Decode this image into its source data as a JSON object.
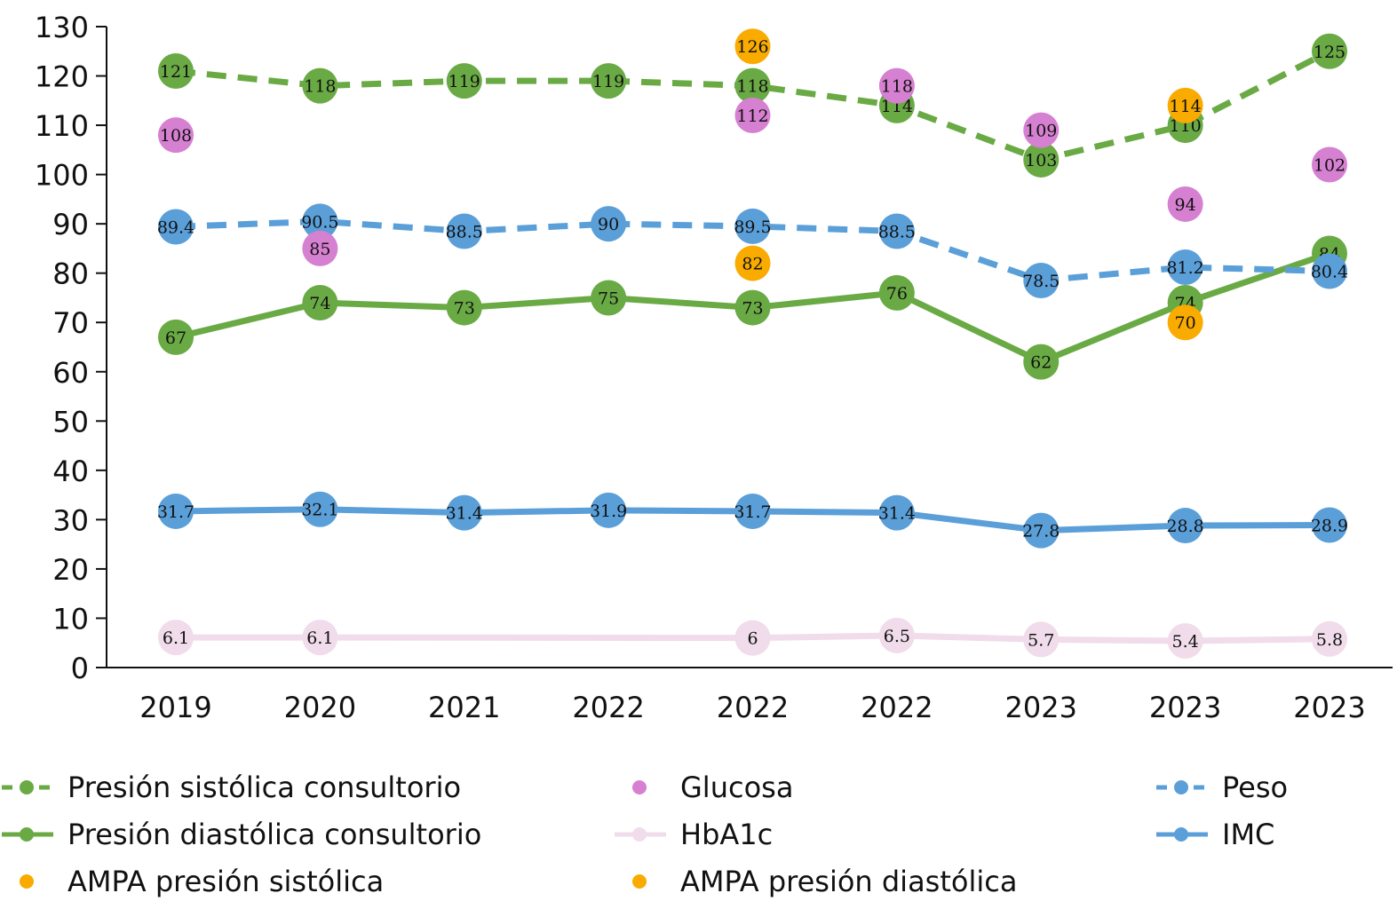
{
  "chart_data": {
    "type": "line",
    "title": "",
    "xlabel": "",
    "ylabel": "",
    "ylim": [
      0,
      130
    ],
    "yticks": [
      0,
      10,
      20,
      30,
      40,
      50,
      60,
      70,
      80,
      90,
      100,
      110,
      120,
      130
    ],
    "grid": false,
    "legend_position": "bottom",
    "categories": [
      "2019",
      "2020",
      "2021",
      "2022",
      "2022",
      "2022",
      "2023",
      "2023",
      "2023"
    ],
    "series": [
      {
        "name": "Presión sistólica consultorio",
        "style": "dashed-line",
        "color": "#6aaa45",
        "values": [
          121,
          118,
          119,
          119,
          118,
          114,
          103,
          110,
          125
        ]
      },
      {
        "name": "Presión diastólica consultorio",
        "style": "solid-line",
        "color": "#6aaa45",
        "values": [
          67,
          74,
          73,
          75,
          73,
          76,
          62,
          74,
          84
        ]
      },
      {
        "name": "AMPA presión sistólica",
        "style": "points",
        "color": "#f9ab00",
        "values": [
          null,
          null,
          null,
          null,
          126,
          null,
          null,
          114,
          null
        ]
      },
      {
        "name": "Glucosa",
        "style": "points",
        "color": "#d680d2",
        "values": [
          108,
          85,
          null,
          null,
          112,
          118,
          109,
          94,
          102
        ]
      },
      {
        "name": "HbA1c",
        "style": "solid-line",
        "color": "#f0dcea",
        "values": [
          6.1,
          6.1,
          null,
          null,
          6,
          6.5,
          5.7,
          5.4,
          5.8
        ]
      },
      {
        "name": "AMPA presión diastólica",
        "style": "points",
        "color": "#f9ab00",
        "values": [
          null,
          null,
          null,
          null,
          82,
          null,
          null,
          70,
          null
        ]
      },
      {
        "name": "Peso",
        "style": "dashed-line",
        "color": "#5b9fd9",
        "values": [
          89.4,
          90.5,
          88.5,
          90,
          89.5,
          88.5,
          78.5,
          81.2,
          80.4
        ]
      },
      {
        "name": "IMC",
        "style": "solid-line",
        "color": "#5b9fd9",
        "values": [
          31.7,
          32.1,
          31.4,
          31.9,
          31.7,
          31.4,
          27.8,
          28.8,
          28.9
        ]
      }
    ],
    "legend": {
      "columns": [
        [
          "Presión sistólica consultorio",
          "Presión diastólica consultorio",
          "AMPA presión sistólica"
        ],
        [
          "Glucosa",
          "HbA1c",
          "AMPA presión diastólica"
        ],
        [
          "Peso",
          "IMC"
        ]
      ]
    }
  }
}
